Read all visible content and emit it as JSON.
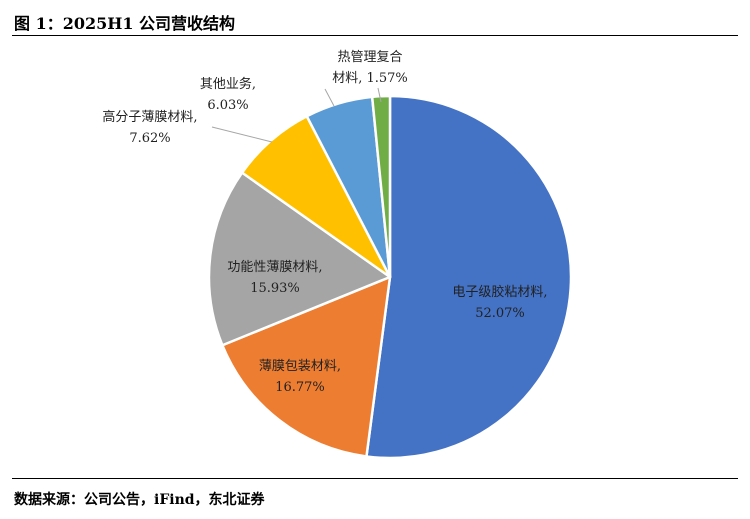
{
  "title": "图 1：2025H1 公司营收结构",
  "source": "数据来源：公司公告，iFind，东北证券",
  "chart_data": {
    "type": "pie",
    "slices": [
      {
        "label": "电子级胶粘材料",
        "value": 52.07,
        "value_text": "52.07%",
        "color": "#4472C4"
      },
      {
        "label": "薄膜包装材料",
        "value": 16.77,
        "value_text": "16.77%",
        "color": "#ED7D31"
      },
      {
        "label": "功能性薄膜材料",
        "value": 15.93,
        "value_text": "15.93%",
        "color": "#A5A5A5"
      },
      {
        "label": "高分子薄膜材料",
        "value": 7.62,
        "value_text": "7.62%",
        "color": "#FFC000"
      },
      {
        "label": "其他业务",
        "value": 6.03,
        "value_text": "6.03%",
        "color": "#5B9BD5"
      },
      {
        "label": "热管理复合材料",
        "value": 1.57,
        "value_text": "1.57%",
        "color": "#70AD47"
      }
    ],
    "start": "12 o'clock",
    "direction": "clockwise",
    "legend": "none"
  }
}
